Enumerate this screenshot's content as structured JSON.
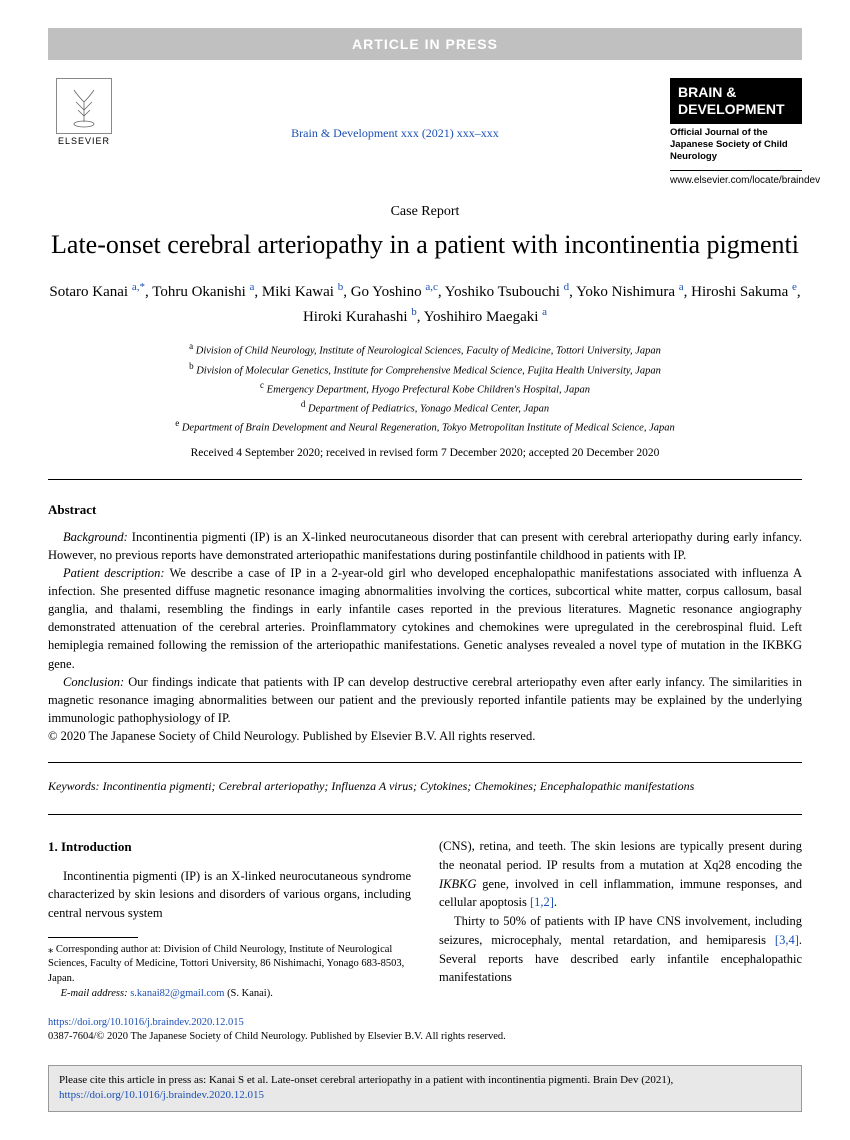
{
  "banner": "ARTICLE IN PRESS",
  "header": {
    "elsevier_label": "ELSEVIER",
    "journal_ref": "Brain & Development xxx (2021) xxx–xxx",
    "badge_line1": "BRAIN &",
    "badge_line2": "DEVELOPMENT",
    "badge_sub": "Official Journal of the Japanese Society of Child Neurology",
    "journal_url": "www.elsevier.com/locate/braindev"
  },
  "article_type": "Case Report",
  "title": "Late-onset cerebral arteriopathy in a patient with incontinentia pigmenti",
  "authors_html": "Sotaro Kanai <a>a,</a><a>*</a>, Tohru Okanishi <a>a</a>, Miki Kawai <a>b</a>, Go Yoshino <a>a,c</a>, Yoshiko Tsubouchi <a>d</a>, Yoko Nishimura <a>a</a>, Hiroshi Sakuma <a>e</a>, Hiroki Kurahashi <a>b</a>, Yoshihiro Maegaki <a>a</a>",
  "affiliations": [
    {
      "sup": "a",
      "text": "Division of Child Neurology, Institute of Neurological Sciences, Faculty of Medicine, Tottori University, Japan"
    },
    {
      "sup": "b",
      "text": "Division of Molecular Genetics, Institute for Comprehensive Medical Science, Fujita Health University, Japan"
    },
    {
      "sup": "c",
      "text": "Emergency Department, Hyogo Prefectural Kobe Children's Hospital, Japan"
    },
    {
      "sup": "d",
      "text": "Department of Pediatrics, Yonago Medical Center, Japan"
    },
    {
      "sup": "e",
      "text": "Department of Brain Development and Neural Regeneration, Tokyo Metropolitan Institute of Medical Science, Japan"
    }
  ],
  "dates": "Received 4 September 2020; received in revised form 7 December 2020; accepted 20 December 2020",
  "abstract": {
    "heading": "Abstract",
    "background_label": "Background:",
    "background": " Incontinentia pigmenti (IP) is an X-linked neurocutaneous disorder that can present with cerebral arteriopathy during early infancy. However, no previous reports have demonstrated arteriopathic manifestations during postinfantile childhood in patients with IP.",
    "patient_label": "Patient description:",
    "patient": " We describe a case of IP in a 2-year-old girl who developed encephalopathic manifestations associated with influenza A infection. She presented diffuse magnetic resonance imaging abnormalities involving the cortices, subcortical white matter, corpus callosum, basal ganglia, and thalami, resembling the findings in early infantile cases reported in the previous literatures. Magnetic resonance angiography demonstrated attenuation of the cerebral arteries. Proinflammatory cytokines and chemokines were upregulated in the cerebrospinal fluid. Left hemiplegia remained following the remission of the arteriopathic manifestations. Genetic analyses revealed a novel type of mutation in the IKBKG gene.",
    "conclusion_label": "Conclusion:",
    "conclusion": " Our findings indicate that patients with IP can develop destructive cerebral arteriopathy even after early infancy. The similarities in magnetic resonance imaging abnormalities between our patient and the previously reported infantile patients may be explained by the underlying immunologic pathophysiology of IP.",
    "copyright": "© 2020 The Japanese Society of Child Neurology. Published by Elsevier B.V. All rights reserved."
  },
  "keywords": {
    "label": "Keywords:",
    "list": "Incontinentia pigmenti; Cerebral arteriopathy; Influenza A virus; Cytokines; Chemokines; Encephalopathic manifestations"
  },
  "intro": {
    "heading": "1. Introduction",
    "col1_p1": "Incontinentia pigmenti (IP) is an X-linked neurocutaneous syndrome characterized by skin lesions and disorders of various organs, including central nervous system",
    "col2_p1_a": "(CNS), retina, and teeth. The skin lesions are typically present during the neonatal period. IP results from a mutation at Xq28 encoding the ",
    "col2_p1_gene": "IKBKG",
    "col2_p1_b": " gene, involved in cell inflammation, immune responses, and cellular apoptosis ",
    "col2_p1_ref": "[1,2]",
    "col2_p1_c": ".",
    "col2_p2_a": "Thirty to 50% of patients with IP have CNS involvement, including seizures, microcephaly, mental retardation, and hemiparesis ",
    "col2_p2_ref": "[3,4]",
    "col2_p2_b": ". Several reports have described early infantile encephalopathic manifestations"
  },
  "footnote": {
    "corr_label": "⁎ Corresponding author at: ",
    "corr_text": "Division of Child Neurology, Institute of Neurological Sciences, Faculty of Medicine, Tottori University, 86 Nishimachi, Yonago 683-8503, Japan.",
    "email_label": "E-mail address:",
    "email": "s.kanai82@gmail.com",
    "email_suffix": " (S. Kanai)."
  },
  "doi": {
    "link": "https://doi.org/10.1016/j.braindev.2020.12.015",
    "issn_line": "0387-7604/© 2020 The Japanese Society of Child Neurology. Published by Elsevier B.V. All rights reserved."
  },
  "citebox": {
    "text_a": "Please cite this article in press as: Kanai S et al. Late-onset cerebral arteriopathy in a patient with incontinentia pigmenti. Brain Dev (2021), ",
    "link": "https://doi.org/10.1016/j.braindev.2020.12.015"
  }
}
